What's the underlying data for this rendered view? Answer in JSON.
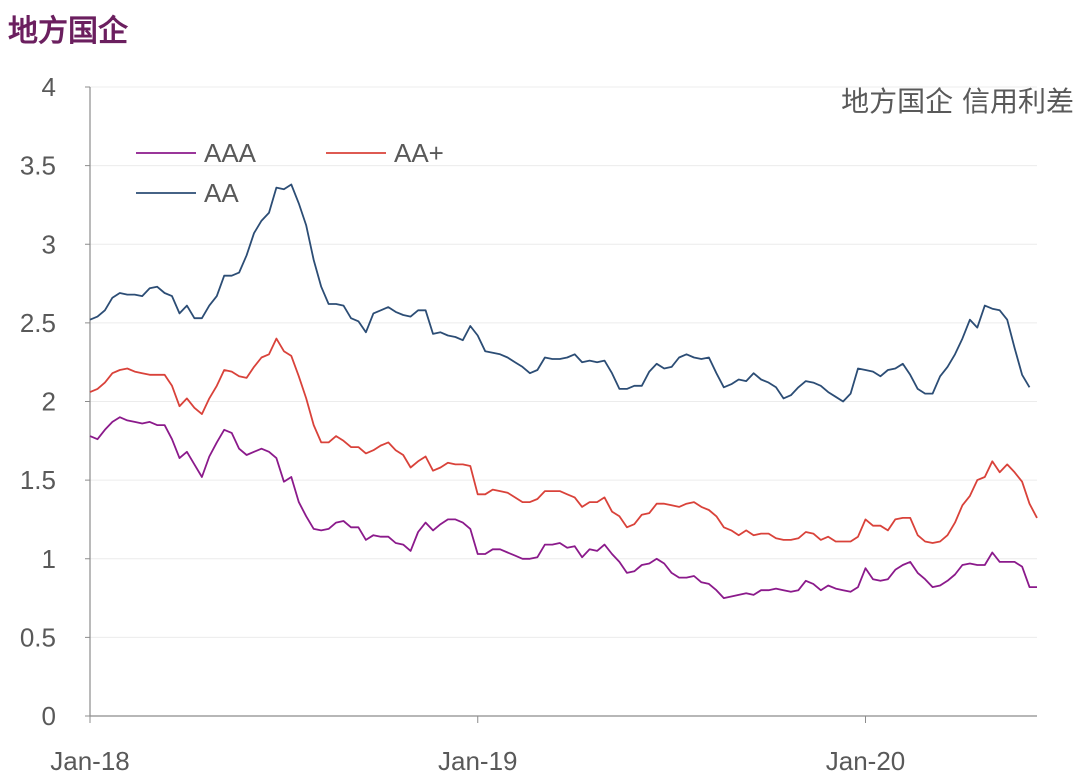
{
  "header": {
    "title": "地方国企"
  },
  "chart_data": {
    "type": "line",
    "title": "地方国企 信用利差",
    "xlabel": "",
    "ylabel": "",
    "ylim": [
      0,
      4
    ],
    "yticks": [
      "0",
      "0.5",
      "1",
      "1.5",
      "2",
      "2.5",
      "3",
      "3.5",
      "4"
    ],
    "xticks": [
      "Jan-18",
      "Jan-19",
      "Jan-20"
    ],
    "grid": true,
    "legend": "top-left",
    "series": [
      {
        "name": "AAA",
        "color": "#8b1a8b",
        "values": [
          1.78,
          1.76,
          1.82,
          1.87,
          1.9,
          1.88,
          1.87,
          1.86,
          1.87,
          1.85,
          1.85,
          1.76,
          1.64,
          1.68,
          1.6,
          1.52,
          1.65,
          1.74,
          1.82,
          1.8,
          1.7,
          1.66,
          1.68,
          1.7,
          1.68,
          1.64,
          1.49,
          1.52,
          1.36,
          1.27,
          1.19,
          1.18,
          1.19,
          1.23,
          1.24,
          1.2,
          1.2,
          1.12,
          1.15,
          1.14,
          1.14,
          1.1,
          1.09,
          1.05,
          1.17,
          1.23,
          1.18,
          1.22,
          1.25,
          1.25,
          1.23,
          1.19,
          1.03,
          1.03,
          1.06,
          1.06,
          1.04,
          1.02,
          1.0,
          1.0,
          1.01,
          1.09,
          1.09,
          1.1,
          1.07,
          1.08,
          1.01,
          1.06,
          1.05,
          1.09,
          1.03,
          0.98,
          0.91,
          0.92,
          0.96,
          0.97,
          1.0,
          0.97,
          0.91,
          0.88,
          0.88,
          0.89,
          0.85,
          0.84,
          0.8,
          0.75,
          0.76,
          0.77,
          0.78,
          0.77,
          0.8,
          0.8,
          0.81,
          0.8,
          0.79,
          0.8,
          0.86,
          0.84,
          0.8,
          0.83,
          0.81,
          0.8,
          0.79,
          0.82,
          0.94,
          0.87,
          0.86,
          0.87,
          0.93,
          0.96,
          0.98,
          0.91,
          0.87,
          0.82,
          0.83,
          0.86,
          0.9,
          0.96,
          0.97,
          0.96,
          0.96,
          1.04,
          0.98,
          0.98,
          0.98,
          0.95,
          0.82,
          0.82
        ]
      },
      {
        "name": "AA+",
        "color": "#d9423a",
        "values": [
          2.06,
          2.08,
          2.12,
          2.18,
          2.2,
          2.21,
          2.19,
          2.18,
          2.17,
          2.17,
          2.17,
          2.1,
          1.97,
          2.02,
          1.96,
          1.92,
          2.02,
          2.1,
          2.2,
          2.19,
          2.16,
          2.15,
          2.22,
          2.28,
          2.3,
          2.4,
          2.32,
          2.29,
          2.16,
          2.02,
          1.85,
          1.74,
          1.74,
          1.78,
          1.75,
          1.71,
          1.71,
          1.67,
          1.69,
          1.72,
          1.74,
          1.69,
          1.66,
          1.58,
          1.62,
          1.65,
          1.56,
          1.58,
          1.61,
          1.6,
          1.6,
          1.59,
          1.41,
          1.41,
          1.44,
          1.43,
          1.42,
          1.39,
          1.36,
          1.36,
          1.38,
          1.43,
          1.43,
          1.43,
          1.41,
          1.39,
          1.33,
          1.36,
          1.36,
          1.39,
          1.3,
          1.27,
          1.2,
          1.22,
          1.28,
          1.29,
          1.35,
          1.35,
          1.34,
          1.33,
          1.35,
          1.36,
          1.33,
          1.31,
          1.27,
          1.2,
          1.18,
          1.15,
          1.18,
          1.15,
          1.16,
          1.16,
          1.13,
          1.12,
          1.12,
          1.13,
          1.17,
          1.16,
          1.12,
          1.14,
          1.11,
          1.11,
          1.11,
          1.14,
          1.25,
          1.21,
          1.21,
          1.18,
          1.25,
          1.26,
          1.26,
          1.15,
          1.11,
          1.1,
          1.11,
          1.15,
          1.23,
          1.34,
          1.4,
          1.5,
          1.52,
          1.62,
          1.55,
          1.6,
          1.55,
          1.49,
          1.35,
          1.26
        ]
      },
      {
        "name": "AA",
        "color": "#2c4d75",
        "values": [
          2.52,
          2.54,
          2.58,
          2.66,
          2.69,
          2.68,
          2.68,
          2.67,
          2.72,
          2.73,
          2.69,
          2.67,
          2.56,
          2.61,
          2.53,
          2.53,
          2.61,
          2.67,
          2.8,
          2.8,
          2.82,
          2.93,
          3.07,
          3.15,
          3.2,
          3.36,
          3.35,
          3.38,
          3.26,
          3.12,
          2.9,
          2.73,
          2.62,
          2.62,
          2.61,
          2.53,
          2.51,
          2.44,
          2.56,
          2.58,
          2.6,
          2.57,
          2.55,
          2.54,
          2.58,
          2.58,
          2.43,
          2.44,
          2.42,
          2.41,
          2.39,
          2.48,
          2.42,
          2.32,
          2.31,
          2.3,
          2.28,
          2.25,
          2.22,
          2.18,
          2.2,
          2.28,
          2.27,
          2.27,
          2.28,
          2.3,
          2.25,
          2.26,
          2.25,
          2.26,
          2.18,
          2.08,
          2.08,
          2.1,
          2.1,
          2.19,
          2.24,
          2.21,
          2.22,
          2.28,
          2.3,
          2.28,
          2.27,
          2.28,
          2.18,
          2.09,
          2.11,
          2.14,
          2.13,
          2.18,
          2.14,
          2.12,
          2.09,
          2.02,
          2.04,
          2.09,
          2.13,
          2.12,
          2.1,
          2.06,
          2.03,
          2.0,
          2.05,
          2.21,
          2.2,
          2.19,
          2.16,
          2.2,
          2.21,
          2.24,
          2.17,
          2.08,
          2.05,
          2.05,
          2.16,
          2.22,
          2.3,
          2.4,
          2.52,
          2.47,
          2.61,
          2.59,
          2.58,
          2.52,
          2.34,
          2.17,
          2.09
        ]
      }
    ]
  }
}
